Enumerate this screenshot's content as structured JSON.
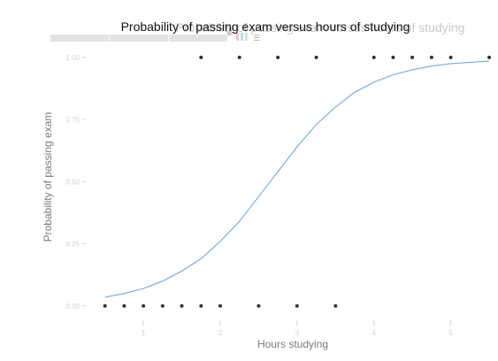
{
  "chart_data": {
    "type": "scatter",
    "title": "Probability of passing exam versus hours of studying",
    "xlabel": "Hours studying",
    "ylabel": "Probability of passing exam",
    "xlim": [
      0.4,
      5.5
    ],
    "ylim": [
      -0.04,
      1.06
    ],
    "x_ticks": [
      1,
      2,
      3,
      4,
      5
    ],
    "y_ticks": [
      0.0,
      0.25,
      0.5,
      0.75,
      1.0
    ],
    "y_tick_labels": [
      "0.00",
      "0.25",
      "0.50",
      "0.75",
      "1.00"
    ],
    "grid": false,
    "series": [
      {
        "kind": "points",
        "color": "#333333",
        "points": [
          {
            "x": 0.5,
            "y": 0
          },
          {
            "x": 0.75,
            "y": 0
          },
          {
            "x": 1.0,
            "y": 0
          },
          {
            "x": 1.25,
            "y": 0
          },
          {
            "x": 1.5,
            "y": 0
          },
          {
            "x": 1.75,
            "y": 1
          },
          {
            "x": 1.75,
            "y": 0
          },
          {
            "x": 2.0,
            "y": 0
          },
          {
            "x": 2.25,
            "y": 1
          },
          {
            "x": 2.5,
            "y": 0
          },
          {
            "x": 2.75,
            "y": 1
          },
          {
            "x": 3.0,
            "y": 0
          },
          {
            "x": 3.25,
            "y": 1
          },
          {
            "x": 3.5,
            "y": 0
          },
          {
            "x": 4.0,
            "y": 1
          },
          {
            "x": 4.25,
            "y": 1
          },
          {
            "x": 4.5,
            "y": 1
          },
          {
            "x": 4.75,
            "y": 1
          },
          {
            "x": 5.0,
            "y": 1
          },
          {
            "x": 5.5,
            "y": 1
          }
        ]
      },
      {
        "kind": "curve",
        "color": "#6fa8e8",
        "x": [
          0.5,
          0.75,
          1.0,
          1.25,
          1.5,
          1.75,
          2.0,
          2.25,
          2.5,
          2.75,
          3.0,
          3.25,
          3.5,
          3.75,
          4.0,
          4.25,
          4.5,
          4.75,
          5.0,
          5.25,
          5.5
        ],
        "values": [
          0.035,
          0.05,
          0.07,
          0.1,
          0.14,
          0.19,
          0.26,
          0.34,
          0.44,
          0.54,
          0.64,
          0.73,
          0.8,
          0.86,
          0.9,
          0.93,
          0.95,
          0.965,
          0.975,
          0.98,
          0.985
        ]
      }
    ]
  }
}
